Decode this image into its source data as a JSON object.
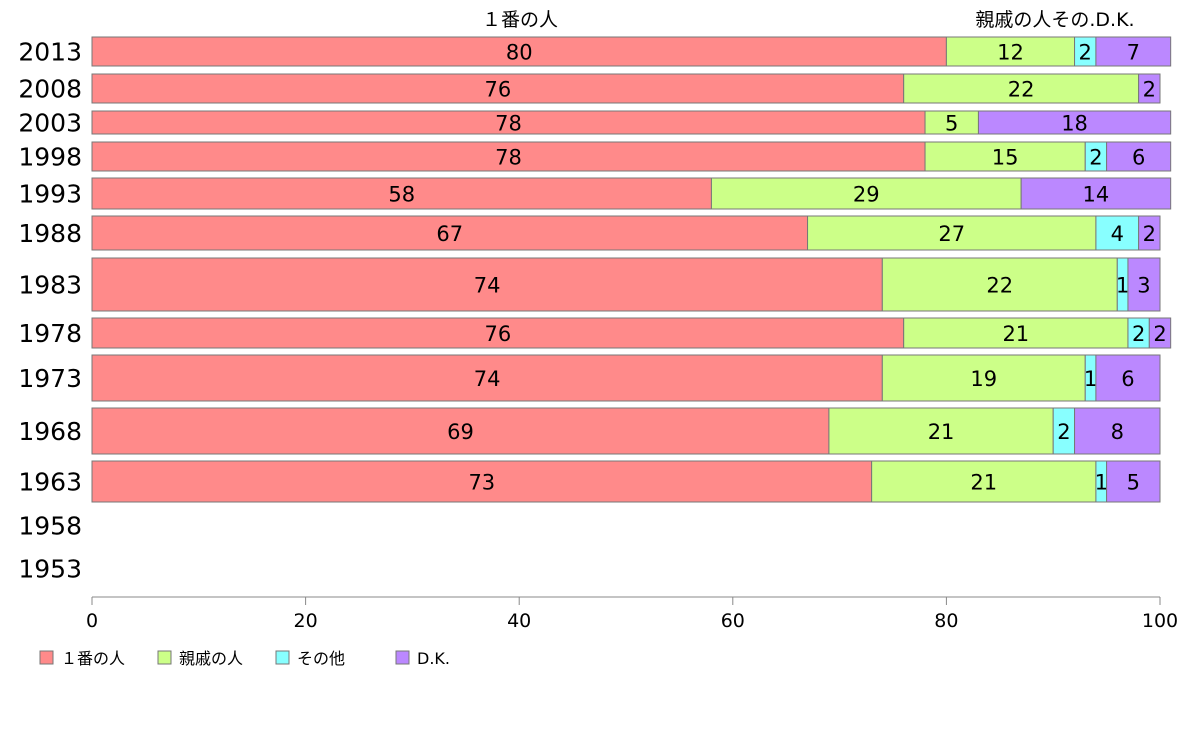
{
  "chart_data": {
    "type": "bar",
    "orientation": "horizontal",
    "stacked": true,
    "categories": [
      "2013",
      "2008",
      "2003",
      "1998",
      "1993",
      "1988",
      "1983",
      "1978",
      "1973",
      "1968",
      "1963",
      "1958",
      "1953"
    ],
    "series": [
      {
        "name": "１番の人",
        "color": "#ff8a8a",
        "values": [
          80,
          76,
          78,
          78,
          58,
          67,
          74,
          76,
          74,
          69,
          73,
          null,
          null
        ]
      },
      {
        "name": "親戚の人",
        "color": "#ccff88",
        "values": [
          12,
          22,
          5,
          15,
          29,
          27,
          22,
          21,
          19,
          21,
          21,
          null,
          null
        ]
      },
      {
        "name": "その他",
        "color": "#88ffff",
        "values": [
          2,
          0,
          0,
          2,
          0,
          4,
          1,
          2,
          1,
          2,
          1,
          null,
          null
        ]
      },
      {
        "name": "D.K.",
        "color": "#bb88ff",
        "values": [
          7,
          2,
          18,
          6,
          14,
          2,
          3,
          2,
          6,
          8,
          5,
          null,
          null
        ]
      }
    ],
    "top_annotations": [
      "１番の人",
      "親戚の人その.D.K."
    ],
    "xlim": [
      0,
      100
    ],
    "xticks": [
      0,
      20,
      40,
      60,
      80,
      100
    ],
    "grid": false,
    "legend_position": "bottom-left"
  }
}
